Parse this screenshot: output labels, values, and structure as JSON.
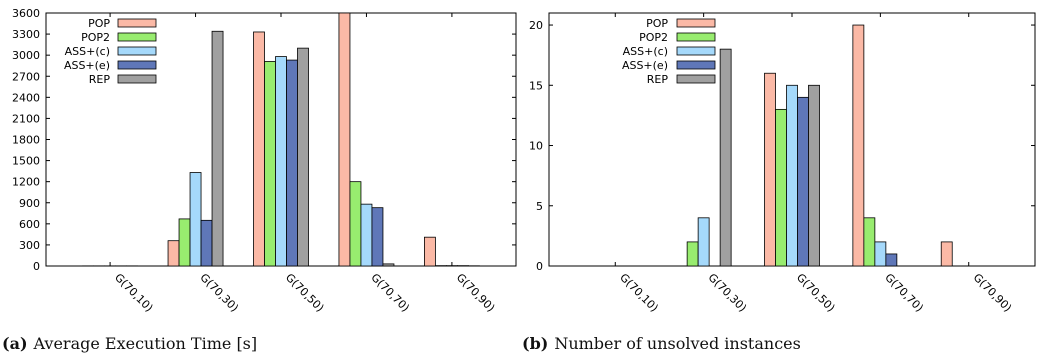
{
  "colors": {
    "POP": "#fbb9a6",
    "POP2": "#98ec6f",
    "ASS+(c)": "#a5d9fb",
    "ASS+(e)": "#5f77b8",
    "REP": "#a0a0a0"
  },
  "captions": [
    {
      "label": "(a)",
      "text": "Average Execution Time [s]"
    },
    {
      "label": "(b)",
      "text": "Number of unsolved instances"
    }
  ],
  "chart_data": [
    {
      "type": "bar",
      "title": "",
      "xlabel": "",
      "ylabel": "",
      "categories": [
        "G(70,10)",
        "G(70,30)",
        "G(70,50)",
        "G(70,70)",
        "G(70,90)"
      ],
      "ylim": [
        0,
        3600
      ],
      "yticks": [
        "0",
        "300",
        "600",
        "900",
        "1200",
        "1500",
        "1800",
        "2100",
        "2400",
        "2700",
        "3000",
        "3300",
        "3600"
      ],
      "legend_position": "top-left",
      "series": [
        {
          "name": "POP",
          "values": [
            2,
            360,
            3330,
            3600,
            410
          ]
        },
        {
          "name": "POP2",
          "values": [
            2,
            670,
            2910,
            1200,
            5
          ]
        },
        {
          "name": "ASS+(c)",
          "values": [
            2,
            1330,
            2980,
            880,
            5
          ]
        },
        {
          "name": "ASS+(e)",
          "values": [
            2,
            650,
            2930,
            830,
            5
          ]
        },
        {
          "name": "REP",
          "values": [
            2,
            3340,
            3100,
            30,
            3
          ]
        }
      ]
    },
    {
      "type": "bar",
      "title": "",
      "xlabel": "",
      "ylabel": "",
      "categories": [
        "G(70,10)",
        "G(70,30)",
        "G(70,50)",
        "G(70,70)",
        "G(70,90)"
      ],
      "ylim": [
        0,
        21
      ],
      "yticks": [
        "0",
        "5",
        "10",
        "15",
        "20"
      ],
      "legend_position": "top-right",
      "series": [
        {
          "name": "POP",
          "values": [
            0,
            0,
            16,
            20,
            2
          ]
        },
        {
          "name": "POP2",
          "values": [
            0,
            2,
            13,
            4,
            0
          ]
        },
        {
          "name": "ASS+(c)",
          "values": [
            0,
            4,
            15,
            2,
            0
          ]
        },
        {
          "name": "ASS+(e)",
          "values": [
            0,
            0,
            14,
            1,
            0
          ]
        },
        {
          "name": "REP",
          "values": [
            0,
            18,
            15,
            0,
            0
          ]
        }
      ]
    }
  ]
}
